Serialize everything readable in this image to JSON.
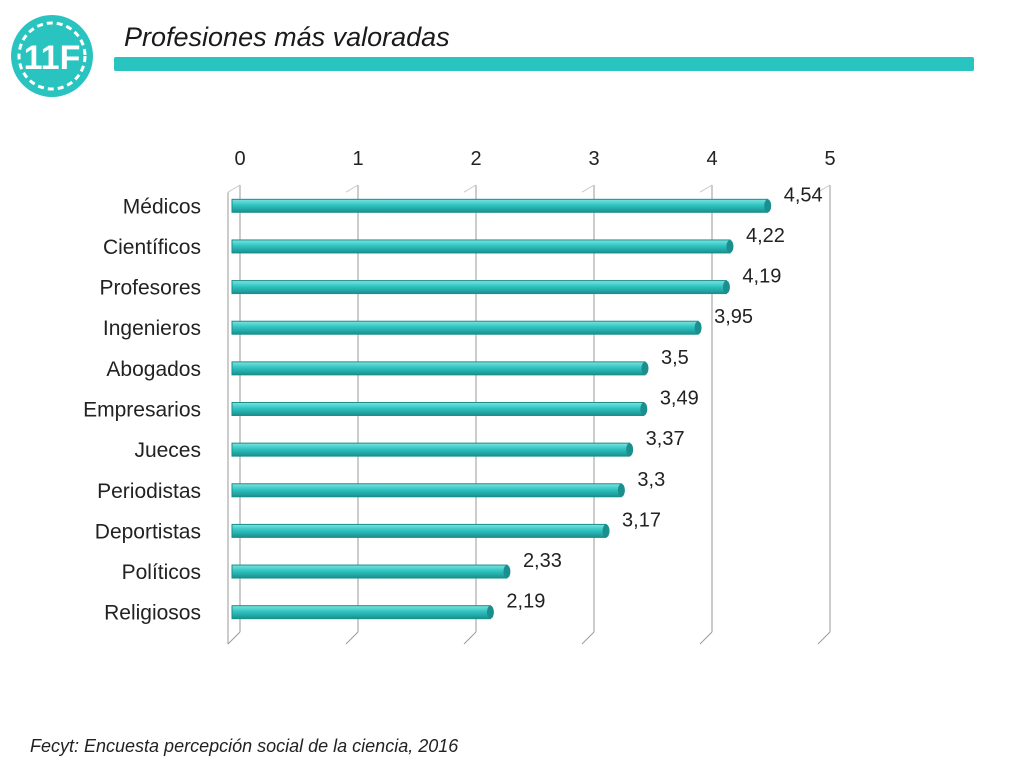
{
  "header": {
    "logo_text": "11F",
    "title": "Profesiones más valoradas",
    "accent_color": "#29c3c0"
  },
  "footer": {
    "source": "Fecyt: Encuesta percepción social de la ciencia, 2016"
  },
  "chart_data": {
    "type": "bar",
    "orientation": "horizontal",
    "categories": [
      "Médicos",
      "Científicos",
      "Profesores",
      "Ingenieros",
      "Abogados",
      "Empresarios",
      "Jueces",
      "Periodistas",
      "Deportistas",
      "Políticos",
      "Religiosos"
    ],
    "values": [
      4.54,
      4.22,
      4.19,
      3.95,
      3.5,
      3.49,
      3.37,
      3.3,
      3.17,
      2.33,
      2.19
    ],
    "value_labels": [
      "4,54",
      "4,22",
      "4,19",
      "3,95",
      "3,5",
      "3,49",
      "3,37",
      "3,3",
      "3,17",
      "2,33",
      "2,19"
    ],
    "xticks": [
      "0",
      "1",
      "2",
      "3",
      "4",
      "5"
    ],
    "xlim": [
      0,
      5
    ],
    "axis_position": "top",
    "grid": true,
    "bar_color": "#2ec4c1",
    "bar_edge_color": "#1a8f8d"
  }
}
